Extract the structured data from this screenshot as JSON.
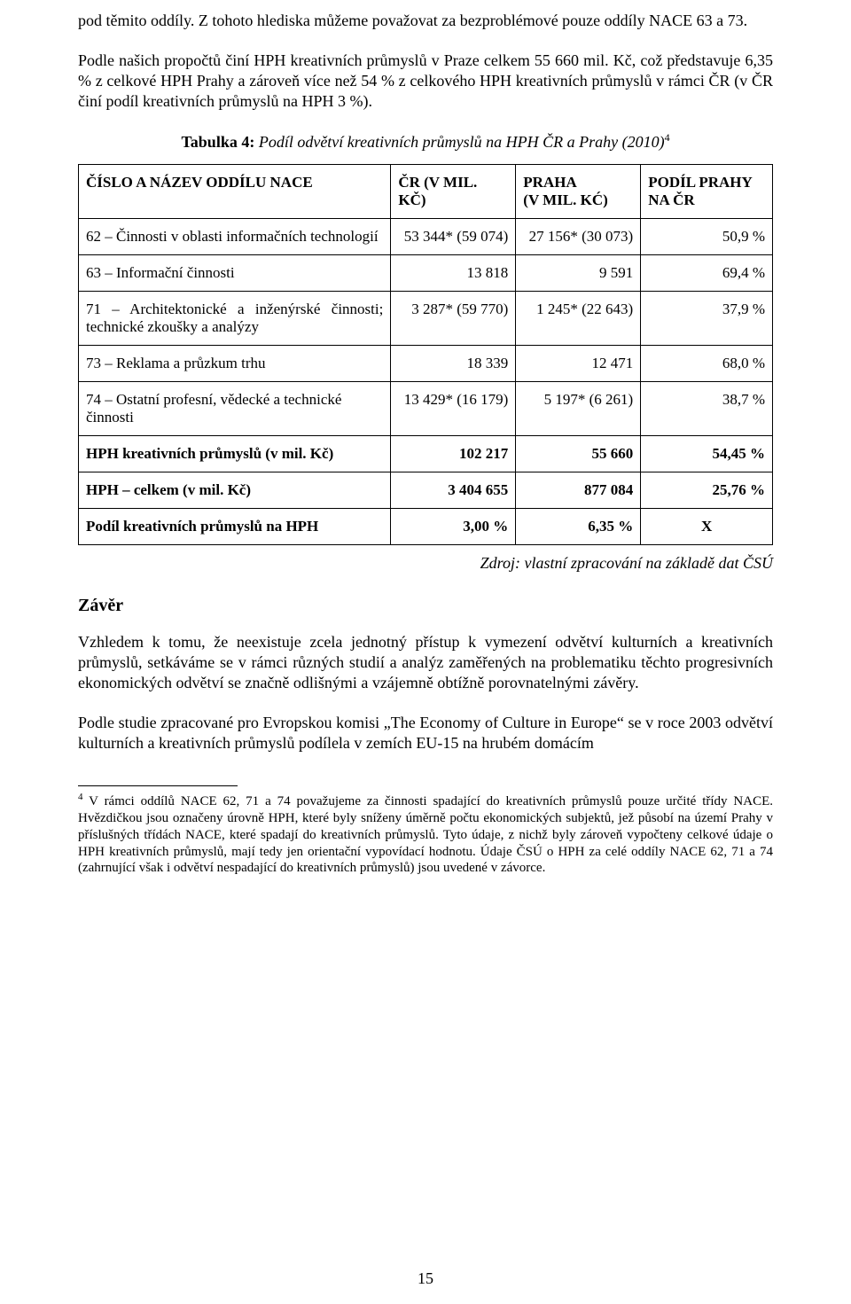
{
  "paragraphs": {
    "p1": "pod těmito oddíly. Z tohoto hlediska můžeme považovat za bezproblémové pouze oddíly NACE 63 a 73.",
    "p2": "Podle našich propočtů činí HPH kreativních průmyslů v Praze celkem 55 660 mil. Kč, což představuje 6,35 % z celkové HPH Prahy a zároveň více než 54 % z celkového HPH kreativních průmyslů v rámci ČR (v ČR činí podíl kreativních průmyslů na HPH 3 %).",
    "p3": "Vzhledem k tomu, že neexistuje zcela jednotný přístup k vymezení odvětví kulturních a kreativních průmyslů, setkáváme se v rámci různých studií a analýz zaměřených na problematiku těchto progresivních ekonomických odvětví se značně odlišnými a vzájemně obtížně porovnatelnými závěry.",
    "p4": "Podle studie zpracované pro Evropskou komisi „The Economy of Culture in Europe“ se v roce 2003 odvětví kulturních a kreativních průmyslů podílela v zemích EU-15 na hrubém domácím"
  },
  "caption": {
    "prefix": "Tabulka 4: ",
    "italic": "Podíl odvětví kreativních průmyslů na HPH ČR a Prahy (2010)",
    "supmark": "4"
  },
  "table": {
    "header": {
      "name": "ČÍSLO A NÁZEV ODDÍLU NACE",
      "cr": "ČR (V MIL. KČ)",
      "praha_l1": "PRAHA",
      "praha_l2": "(V MIL. KĆ)",
      "podil_l1": "PODÍL PRAHY",
      "podil_l2": "NA ČR"
    },
    "rows": [
      {
        "name": "62 – Činnosti v oblasti informačních technologií",
        "cr": "53 344* (59 074)",
        "praha": "27 156* (30 073)",
        "podil": "50,9 %",
        "bold": false,
        "justify": false
      },
      {
        "name": "63 – Informační činnosti",
        "cr": "13 818",
        "praha": "9 591",
        "podil": "69,4 %",
        "bold": false,
        "justify": false
      },
      {
        "name": "71 – Architektonické a inženýrské činnosti; technické zkoušky a analýzy",
        "cr": "3 287* (59 770)",
        "praha": "1 245* (22 643)",
        "podil": "37,9 %",
        "bold": false,
        "justify": true
      },
      {
        "name": "73 – Reklama a průzkum trhu",
        "cr": "18 339",
        "praha": "12 471",
        "podil": "68,0 %",
        "bold": false,
        "justify": false
      },
      {
        "name": "74 – Ostatní profesní, vědecké a technické činnosti",
        "cr": "13 429* (16 179)",
        "praha": "5 197* (6 261)",
        "podil": "38,7 %",
        "bold": false,
        "justify": false
      },
      {
        "name": "HPH kreativních průmyslů (v mil. Kč)",
        "cr": "102 217",
        "praha": "55 660",
        "podil": "54,45 %",
        "bold": true,
        "justify": false
      },
      {
        "name": "HPH – celkem (v mil. Kč)",
        "cr": "3 404 655",
        "praha": "877 084",
        "podil": "25,76 %",
        "bold": true,
        "justify": false
      },
      {
        "name": "Podíl kreativních průmyslů na HPH",
        "cr": "3,00 %",
        "praha": "6,35 %",
        "podil": "X",
        "bold": true,
        "justify": false,
        "center_podil": true
      }
    ]
  },
  "source": "Zdroj: vlastní zpracování na základě dat ČSÚ",
  "heading": "Závěr",
  "footnote": {
    "mark": "4",
    "text": " V rámci oddílů NACE 62, 71 a 74 považujeme za činnosti spadající do kreativních průmyslů pouze určité třídy NACE. Hvězdičkou jsou označeny úrovně HPH, které byly sníženy úměrně počtu ekonomických subjektů, jež působí na území Prahy v příslušných třídách NACE, které spadají do kreativních průmyslů. Tyto údaje, z nichž byly zároveň vypočteny celkové údaje o HPH kreativních průmyslů, mají tedy jen orientační vypovídací hodnotu. Údaje ČSÚ o HPH za celé oddíly NACE 62, 71 a 74 (zahrnující však i odvětví nespadající do kreativních průmyslů) jsou uvedené v závorce."
  },
  "page_number": "15"
}
